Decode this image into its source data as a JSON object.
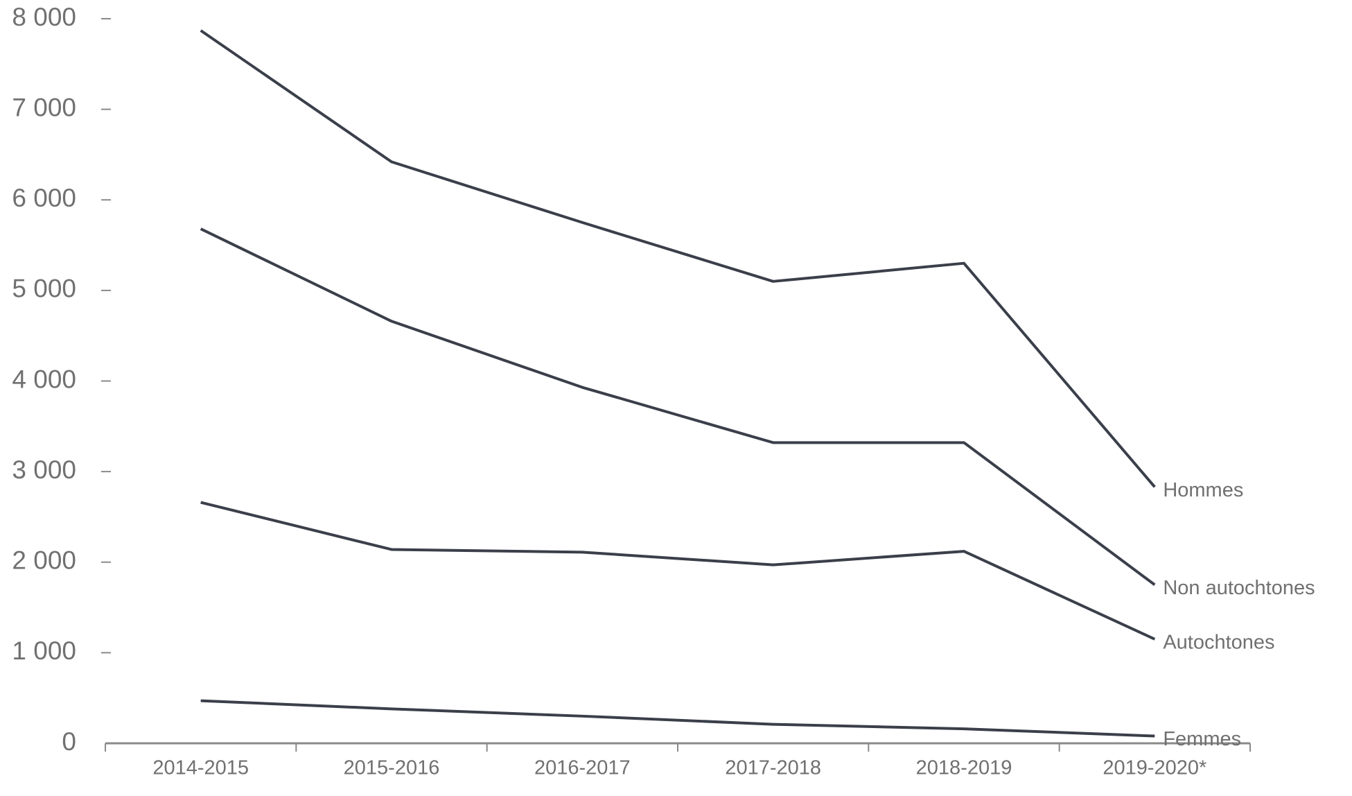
{
  "chart_data": {
    "type": "line",
    "categories": [
      "2014-2015",
      "2015-2016",
      "2016-2017",
      "2017-2018",
      "2018-2019",
      "2019-2020*"
    ],
    "series": [
      {
        "name": "Hommes",
        "color": "#3a3f4a",
        "values": [
          7870,
          6420,
          5750,
          5100,
          5300,
          2830
        ]
      },
      {
        "name": "Non autochtones",
        "color": "#3a3f4a",
        "values": [
          5680,
          4660,
          3930,
          3320,
          3320,
          1750
        ]
      },
      {
        "name": "Autochtones",
        "color": "#3a3f4a",
        "values": [
          2660,
          2140,
          2110,
          1970,
          2120,
          1150
        ]
      },
      {
        "name": "Femmes",
        "color": "#3a3f4a",
        "values": [
          470,
          380,
          300,
          210,
          160,
          80
        ]
      }
    ],
    "ylim": [
      0,
      8000
    ],
    "yticks": [
      0,
      {
        "value": 1000,
        "label": "1 000"
      },
      {
        "value": 2000,
        "label": "2 000"
      },
      {
        "value": 3000,
        "label": "3 000"
      },
      {
        "value": 4000,
        "label": "4 000"
      },
      {
        "value": 5000,
        "label": "5 000"
      },
      {
        "value": 6000,
        "label": "6 000"
      },
      {
        "value": 7000,
        "label": "7 000"
      },
      {
        "value": 8000,
        "label": "8 000"
      }
    ],
    "grid": false
  }
}
